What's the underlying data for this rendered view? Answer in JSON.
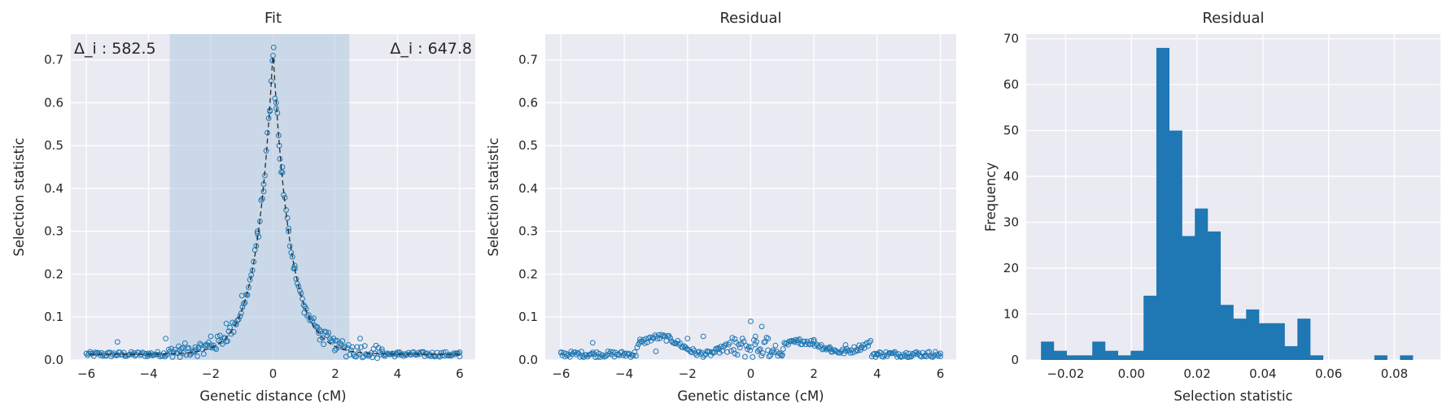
{
  "colors": {
    "background": "#ffffff",
    "axes_face": "#eaeaf2",
    "grid": "#ffffff",
    "marker": "#1f77b4",
    "bar": "#1f77b4",
    "span": "#aec8e0",
    "fit_line": "#2b2b2b",
    "text": "#262626"
  },
  "chart_data": [
    {
      "type": "scatter",
      "title": "Fit",
      "xlabel": "Genetic distance (cM)",
      "ylabel": "Selection statistic",
      "xlim": [
        -6.5,
        6.5
      ],
      "ylim": [
        0,
        0.76
      ],
      "xticks": [
        -6,
        -4,
        -2,
        0,
        2,
        4,
        6
      ],
      "xtick_labels": [
        "−6",
        "−4",
        "−2",
        "0",
        "2",
        "4",
        "6"
      ],
      "yticks": [
        0,
        0.1,
        0.2,
        0.3,
        0.4,
        0.5,
        0.6,
        0.7
      ],
      "ytick_labels": [
        "0.0",
        "0.1",
        "0.2",
        "0.3",
        "0.4",
        "0.5",
        "0.6",
        "0.7"
      ],
      "grid": true,
      "shaded_span": [
        -3.32,
        2.45
      ],
      "annotations": {
        "left": "Δ_i : 582.5",
        "right": "Δ_i : 647.8"
      },
      "fit_curve": {
        "style": "dashed",
        "model": "peak 0.72 at x = 0, exponential decay to baseline 0.013 (scale 0.52 cM left, 0.55 cM right)"
      },
      "point_sample": [
        {
          "x": -6.0,
          "y": 0.015
        },
        {
          "x": -5.0,
          "y": 0.042
        },
        {
          "x": -4.0,
          "y": 0.012
        },
        {
          "x": -3.45,
          "y": 0.05
        },
        {
          "x": -3.0,
          "y": 0.022
        },
        {
          "x": -2.5,
          "y": 0.03
        },
        {
          "x": -2.0,
          "y": 0.055
        },
        {
          "x": -1.5,
          "y": 0.085
        },
        {
          "x": -1.0,
          "y": 0.15
        },
        {
          "x": -0.5,
          "y": 0.3
        },
        {
          "x": -0.3,
          "y": 0.41
        },
        {
          "x": -0.1,
          "y": 0.58
        },
        {
          "x": 0.0,
          "y": 0.71
        },
        {
          "x": 0.1,
          "y": 0.6
        },
        {
          "x": 0.2,
          "y": 0.5
        },
        {
          "x": 0.3,
          "y": 0.45
        },
        {
          "x": 0.5,
          "y": 0.3
        },
        {
          "x": 0.7,
          "y": 0.22
        },
        {
          "x": 1.0,
          "y": 0.11
        },
        {
          "x": 1.5,
          "y": 0.07
        },
        {
          "x": 2.0,
          "y": 0.045
        },
        {
          "x": 2.8,
          "y": 0.05
        },
        {
          "x": 3.5,
          "y": 0.025
        },
        {
          "x": 4.0,
          "y": 0.012
        },
        {
          "x": 5.0,
          "y": 0.01
        },
        {
          "x": 6.0,
          "y": 0.008
        }
      ]
    },
    {
      "type": "scatter",
      "title": "Residual",
      "xlabel": "Genetic distance (cM)",
      "ylabel": "Selection statistic",
      "xlim": [
        -6.5,
        6.5
      ],
      "ylim": [
        0,
        0.76
      ],
      "xticks": [
        -6,
        -4,
        -2,
        0,
        2,
        4,
        6
      ],
      "xtick_labels": [
        "−6",
        "−4",
        "−2",
        "0",
        "2",
        "4",
        "6"
      ],
      "yticks": [
        0,
        0.1,
        0.2,
        0.3,
        0.4,
        0.5,
        0.6,
        0.7
      ],
      "ytick_labels": [
        "0.0",
        "0.1",
        "0.2",
        "0.3",
        "0.4",
        "0.5",
        "0.6",
        "0.7"
      ],
      "grid": true,
      "point_sample": [
        {
          "x": -6.0,
          "y": 0.018
        },
        {
          "x": -5.0,
          "y": 0.04
        },
        {
          "x": -4.0,
          "y": 0.015
        },
        {
          "x": -3.5,
          "y": 0.048
        },
        {
          "x": -3.0,
          "y": 0.02
        },
        {
          "x": -2.0,
          "y": 0.05
        },
        {
          "x": -1.5,
          "y": 0.055
        },
        {
          "x": -1.0,
          "y": 0.025
        },
        {
          "x": -0.5,
          "y": 0.015
        },
        {
          "x": 0.0,
          "y": 0.09
        },
        {
          "x": 0.15,
          "y": 0.055
        },
        {
          "x": 0.35,
          "y": 0.078
        },
        {
          "x": 0.55,
          "y": 0.05
        },
        {
          "x": 1.0,
          "y": 0.012
        },
        {
          "x": 1.5,
          "y": 0.04
        },
        {
          "x": 2.0,
          "y": 0.047
        },
        {
          "x": 2.5,
          "y": 0.03
        },
        {
          "x": 3.0,
          "y": 0.035
        },
        {
          "x": 3.5,
          "y": 0.03
        },
        {
          "x": 4.0,
          "y": 0.012
        },
        {
          "x": 5.0,
          "y": 0.015
        },
        {
          "x": 6.0,
          "y": 0.008
        }
      ]
    },
    {
      "type": "bar",
      "title": "Residual",
      "xlabel": "Selection statistic",
      "ylabel": "Frequency",
      "xlim": [
        -0.032,
        0.094
      ],
      "ylim": [
        0,
        71
      ],
      "xticks": [
        -0.02,
        0.0,
        0.02,
        0.04,
        0.06,
        0.08
      ],
      "xtick_labels": [
        "−0.02",
        "0.00",
        "0.02",
        "0.04",
        "0.06",
        "0.08"
      ],
      "yticks": [
        0,
        10,
        20,
        30,
        40,
        50,
        60,
        70
      ],
      "ytick_labels": [
        "0",
        "10",
        "20",
        "30",
        "40",
        "50",
        "60",
        "70"
      ],
      "grid": true,
      "bin_start": -0.0275,
      "bin_width": 0.0039,
      "counts": [
        4,
        2,
        1,
        1,
        4,
        2,
        1,
        2,
        14,
        68,
        50,
        27,
        33,
        28,
        12,
        9,
        11,
        8,
        8,
        3,
        9,
        1,
        0,
        0,
        0,
        0,
        1,
        0,
        1
      ]
    }
  ]
}
